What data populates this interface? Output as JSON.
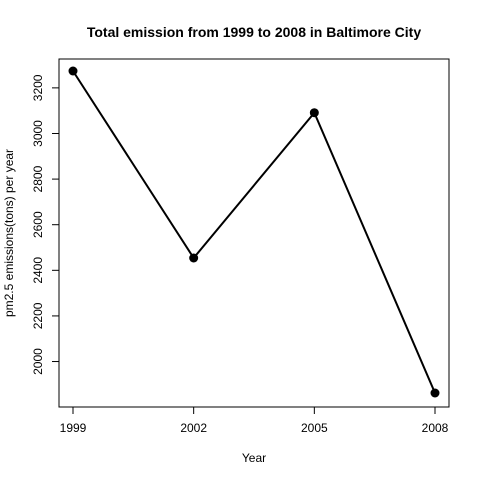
{
  "chart_data": {
    "type": "line",
    "title": "Total emission from 1999 to 2008 in Baltimore City",
    "xlabel": "Year",
    "ylabel": "pm2.5 emissions(tons) per year",
    "x": [
      1999,
      2002,
      2005,
      2008
    ],
    "x_tick_labels": [
      "1999",
      "2002",
      "2005",
      "2008"
    ],
    "y": [
      3274,
      2454,
      3091,
      1862
    ],
    "y_ticks": [
      2000,
      2200,
      2400,
      2600,
      2800,
      3000,
      3200
    ],
    "y_tick_labels": [
      "2000",
      "2200",
      "2400",
      "2600",
      "2800",
      "3000",
      "3200"
    ],
    "xlim": [
      1999,
      2008
    ],
    "ylim": [
      1862,
      3274
    ],
    "grid": false,
    "line_color": "#000000",
    "marker": "filled-circle"
  }
}
